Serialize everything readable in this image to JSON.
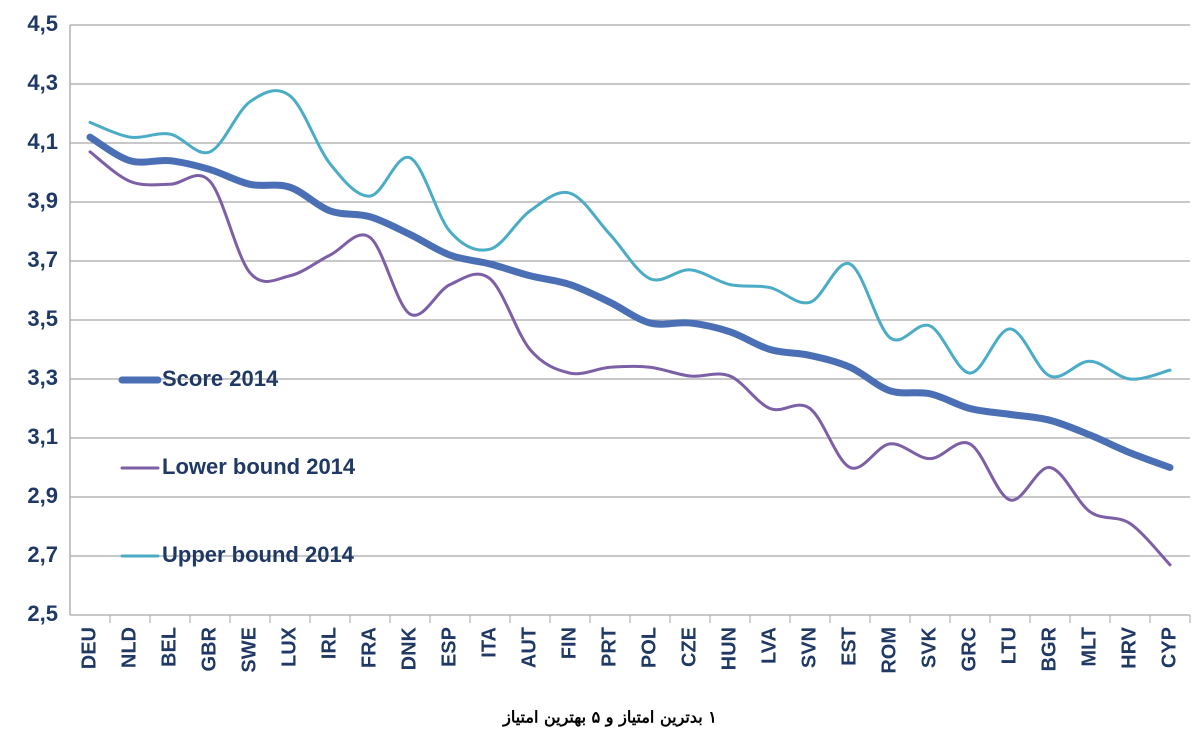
{
  "chart_data": {
    "type": "line",
    "categories": [
      "DEU",
      "NLD",
      "BEL",
      "GBR",
      "SWE",
      "LUX",
      "IRL",
      "FRA",
      "DNK",
      "ESP",
      "ITA",
      "AUT",
      "FIN",
      "PRT",
      "POL",
      "CZE",
      "HUN",
      "LVA",
      "SVN",
      "EST",
      "ROM",
      "SVK",
      "GRC",
      "LTU",
      "BGR",
      "MLT",
      "HRV",
      "CYP"
    ],
    "series": [
      {
        "name": "Score 2014",
        "color": "#4a6fb5",
        "values": [
          4.12,
          4.04,
          4.04,
          4.01,
          3.96,
          3.95,
          3.87,
          3.85,
          3.79,
          3.72,
          3.69,
          3.65,
          3.62,
          3.56,
          3.49,
          3.49,
          3.46,
          3.4,
          3.38,
          3.34,
          3.26,
          3.25,
          3.2,
          3.18,
          3.16,
          3.11,
          3.05,
          3.0
        ]
      },
      {
        "name": "Lower bound 2014",
        "color": "#7d5fa6",
        "values": [
          4.07,
          3.97,
          3.96,
          3.97,
          3.66,
          3.65,
          3.72,
          3.78,
          3.52,
          3.62,
          3.64,
          3.4,
          3.32,
          3.34,
          3.34,
          3.31,
          3.31,
          3.2,
          3.2,
          3.0,
          3.08,
          3.03,
          3.08,
          2.89,
          3.0,
          2.85,
          2.81,
          2.67
        ]
      },
      {
        "name": "Upper bound 2014",
        "color": "#4bacc6",
        "values": [
          4.17,
          4.12,
          4.13,
          4.07,
          4.24,
          4.26,
          4.03,
          3.92,
          4.05,
          3.8,
          3.74,
          3.87,
          3.93,
          3.79,
          3.64,
          3.67,
          3.62,
          3.61,
          3.56,
          3.69,
          3.44,
          3.48,
          3.32,
          3.47,
          3.31,
          3.36,
          3.3,
          3.33
        ]
      }
    ],
    "ylim": [
      2.5,
      4.5
    ],
    "yticks": [
      {
        "value": 2.5,
        "label": "2,5"
      },
      {
        "value": 2.7,
        "label": "2,7"
      },
      {
        "value": 2.9,
        "label": "2,9"
      },
      {
        "value": 3.1,
        "label": "3,1"
      },
      {
        "value": 3.3,
        "label": "3,3"
      },
      {
        "value": 3.5,
        "label": "3,5"
      },
      {
        "value": 3.7,
        "label": "3,7"
      },
      {
        "value": 3.9,
        "label": "3,9"
      },
      {
        "value": 4.1,
        "label": "4,1"
      },
      {
        "value": 4.3,
        "label": "4,3"
      },
      {
        "value": 4.5,
        "label": "4,5"
      }
    ],
    "grid": true,
    "legend": "left",
    "caption": "۱ بدترین امتیاز و ۵ بهترین امتیاز"
  }
}
